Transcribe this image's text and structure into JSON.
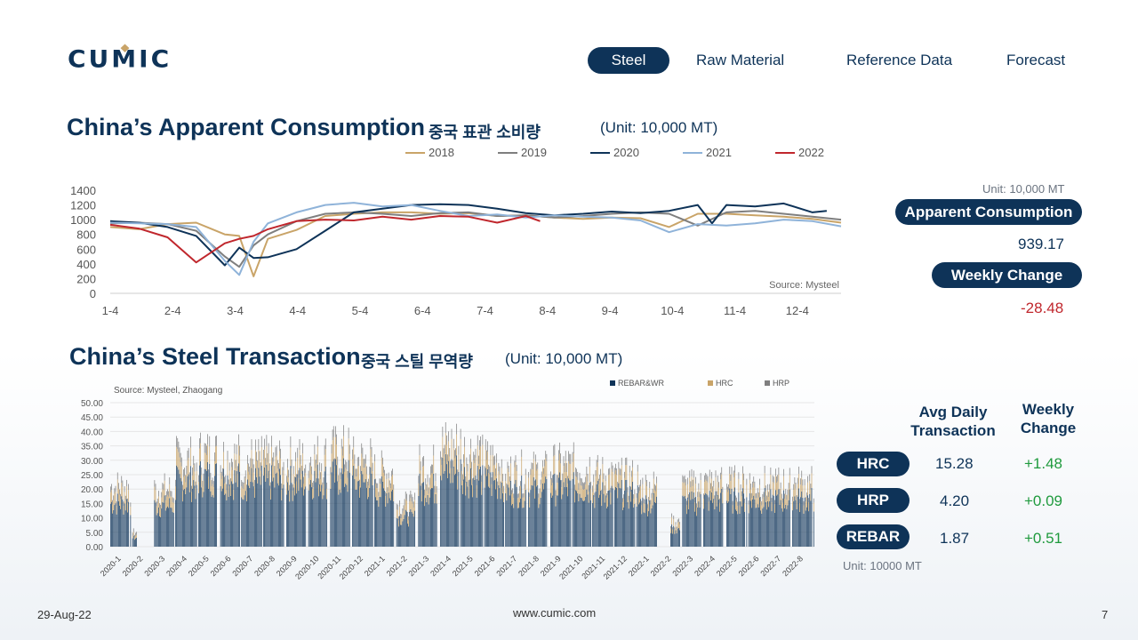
{
  "logo": "CUMIC",
  "nav": [
    "Steel",
    "Raw Material",
    "Reference Data",
    "Forecast"
  ],
  "section1": {
    "title": "China’s Apparent Consumption",
    "korean": "중국 표관 소비량",
    "unit": "(Unit: 10,000 MT)"
  },
  "section2": {
    "title": "China’s Steel Transaction",
    "korean": "중국 스틸 무역량",
    "unit": "(Unit: 10,000 MT)"
  },
  "side1": {
    "unit": "Unit: 10,000 MT",
    "consumption_label": "Apparent Consumption",
    "consumption_value": "939.17",
    "change_label": "Weekly Change",
    "change_value": "-28.48"
  },
  "side2": {
    "col1": "Avg Daily Transaction",
    "col2": "Weekly Change",
    "rows": [
      {
        "label": "HRC",
        "value": "15.28",
        "change": "+1.48"
      },
      {
        "label": "HRP",
        "value": "4.20",
        "change": "+0.09"
      },
      {
        "label": "REBAR",
        "value": "1.87",
        "change": "+0.51"
      }
    ],
    "unit": "Unit: 10000 MT"
  },
  "footer": {
    "date": "29-Aug-22",
    "url": "www.cumic.com",
    "page": "7"
  },
  "colors": {
    "navy": "#0e3358",
    "gold": "#c9a468",
    "red": "#c0272d",
    "green": "#1f9a3d"
  },
  "chart_data": [
    {
      "type": "line",
      "title": "",
      "source": "Source: Mysteel",
      "x_ticks": [
        "1-4",
        "2-4",
        "3-4",
        "4-4",
        "5-4",
        "6-4",
        "7-4",
        "8-4",
        "9-4",
        "10-4",
        "11-4",
        "12-4"
      ],
      "ylim": [
        0,
        1400
      ],
      "y_ticks": [
        0,
        200,
        400,
        600,
        800,
        1000,
        1200,
        1400
      ],
      "x_range": [
        1,
        52
      ],
      "legend_position": "top",
      "series": [
        {
          "name": "2018",
          "color": "#c9a468",
          "x": [
            1,
            3,
            5,
            7,
            9,
            10,
            11,
            12,
            14,
            16,
            18,
            20,
            22,
            24,
            26,
            28,
            30,
            32,
            34,
            36,
            38,
            40,
            42,
            44,
            46,
            48,
            50,
            52
          ],
          "values": [
            900,
            870,
            940,
            960,
            800,
            780,
            230,
            740,
            860,
            1050,
            1080,
            1100,
            1100,
            1080,
            1090,
            1050,
            1060,
            1030,
            1010,
            1030,
            1020,
            900,
            1080,
            1080,
            1060,
            1040,
            1010,
            960
          ]
        },
        {
          "name": "2019",
          "color": "#7f7f7f",
          "x": [
            1,
            3,
            5,
            7,
            9,
            10,
            11,
            12,
            14,
            16,
            18,
            20,
            22,
            24,
            26,
            28,
            30,
            32,
            34,
            36,
            38,
            40,
            42,
            44,
            46,
            48,
            50,
            52
          ],
          "values": [
            950,
            960,
            940,
            850,
            500,
            360,
            650,
            800,
            980,
            1080,
            1100,
            1080,
            1050,
            1090,
            1100,
            1050,
            1060,
            1030,
            1050,
            1080,
            1100,
            1080,
            920,
            1100,
            1120,
            1080,
            1040,
            1000
          ]
        },
        {
          "name": "2020",
          "color": "#0e3358",
          "x": [
            1,
            3,
            5,
            7,
            9,
            10,
            11,
            12,
            14,
            16,
            18,
            20,
            22,
            24,
            26,
            28,
            30,
            32,
            34,
            36,
            38,
            40,
            42,
            43,
            44,
            46,
            48,
            50,
            51
          ],
          "values": [
            980,
            960,
            900,
            780,
            380,
            620,
            480,
            490,
            600,
            850,
            1100,
            1150,
            1200,
            1210,
            1200,
            1150,
            1090,
            1060,
            1080,
            1110,
            1090,
            1120,
            1200,
            950,
            1200,
            1180,
            1220,
            1100,
            1120
          ]
        },
        {
          "name": "2021",
          "color": "#8fb3d9",
          "x": [
            1,
            3,
            5,
            7,
            9,
            10,
            11,
            12,
            14,
            16,
            18,
            20,
            22,
            24,
            26,
            28,
            30,
            32,
            34,
            36,
            38,
            40,
            42,
            44,
            46,
            48,
            50,
            52
          ],
          "values": [
            960,
            950,
            940,
            900,
            440,
            250,
            700,
            950,
            1100,
            1200,
            1230,
            1180,
            1200,
            1120,
            1050,
            1070,
            1030,
            1060,
            1040,
            1030,
            990,
            830,
            940,
            920,
            950,
            1000,
            980,
            910
          ]
        },
        {
          "name": "2022",
          "color": "#c0272d",
          "x": [
            1,
            3,
            5,
            7,
            9,
            10,
            11,
            12,
            14,
            16,
            18,
            20,
            22,
            24,
            26,
            28,
            30,
            31
          ],
          "values": [
            930,
            880,
            760,
            420,
            680,
            740,
            780,
            870,
            980,
            1000,
            990,
            1040,
            1000,
            1050,
            1040,
            960,
            1050,
            980
          ]
        }
      ]
    },
    {
      "type": "bar",
      "stacked": true,
      "source": "Source: Mysteel, Zhaogang",
      "ylim": [
        0,
        50
      ],
      "y_ticks": [
        "0.00",
        "5.00",
        "10.00",
        "15.00",
        "20.00",
        "25.00",
        "30.00",
        "35.00",
        "40.00",
        "45.00",
        "50.00"
      ],
      "x_ticks": [
        "2020-1",
        "2020-2",
        "2020-3",
        "2020-4",
        "2020-5",
        "2020-6",
        "2020-7",
        "2020-8",
        "2020-9",
        "2020-10",
        "2020-11",
        "2020-12",
        "2021-1",
        "2021-2",
        "2021-3",
        "2021-4",
        "2021-5",
        "2021-6",
        "2021-7",
        "2021-8",
        "2021-9",
        "2021-10",
        "2021-11",
        "2021-12",
        "2022-1",
        "2022-2",
        "2022-3",
        "2022-4",
        "2022-5",
        "2022-6",
        "2022-7",
        "2022-8"
      ],
      "monthly_levels": [
        [
          15,
          4,
          2
        ],
        [
          3,
          1,
          1
        ],
        [
          14,
          4,
          2
        ],
        [
          22,
          5,
          3
        ],
        [
          24,
          5,
          3
        ],
        [
          23,
          5,
          3
        ],
        [
          22,
          5,
          3
        ],
        [
          22,
          5,
          3
        ],
        [
          22,
          5,
          3
        ],
        [
          23,
          5,
          3
        ],
        [
          24,
          6,
          3
        ],
        [
          22,
          5,
          3
        ],
        [
          19,
          5,
          2
        ],
        [
          10,
          3,
          2
        ],
        [
          20,
          5,
          3
        ],
        [
          26,
          6,
          3
        ],
        [
          24,
          6,
          3
        ],
        [
          22,
          5,
          3
        ],
        [
          19,
          5,
          2
        ],
        [
          19,
          5,
          2
        ],
        [
          20,
          5,
          3
        ],
        [
          20,
          5,
          3
        ],
        [
          18,
          5,
          2
        ],
        [
          18,
          4,
          2
        ],
        [
          15,
          4,
          2
        ],
        [
          6,
          2,
          1
        ],
        [
          15,
          4,
          2
        ],
        [
          16,
          4,
          2
        ],
        [
          16,
          4,
          2
        ],
        [
          16,
          4,
          2
        ],
        [
          16,
          4,
          2
        ],
        [
          16,
          4,
          2
        ]
      ],
      "series": [
        {
          "name": "REBAR&WR",
          "color": "#0e3358"
        },
        {
          "name": "HRC",
          "color": "#c9a468"
        },
        {
          "name": "HRP",
          "color": "#7f7f7f"
        }
      ]
    }
  ]
}
